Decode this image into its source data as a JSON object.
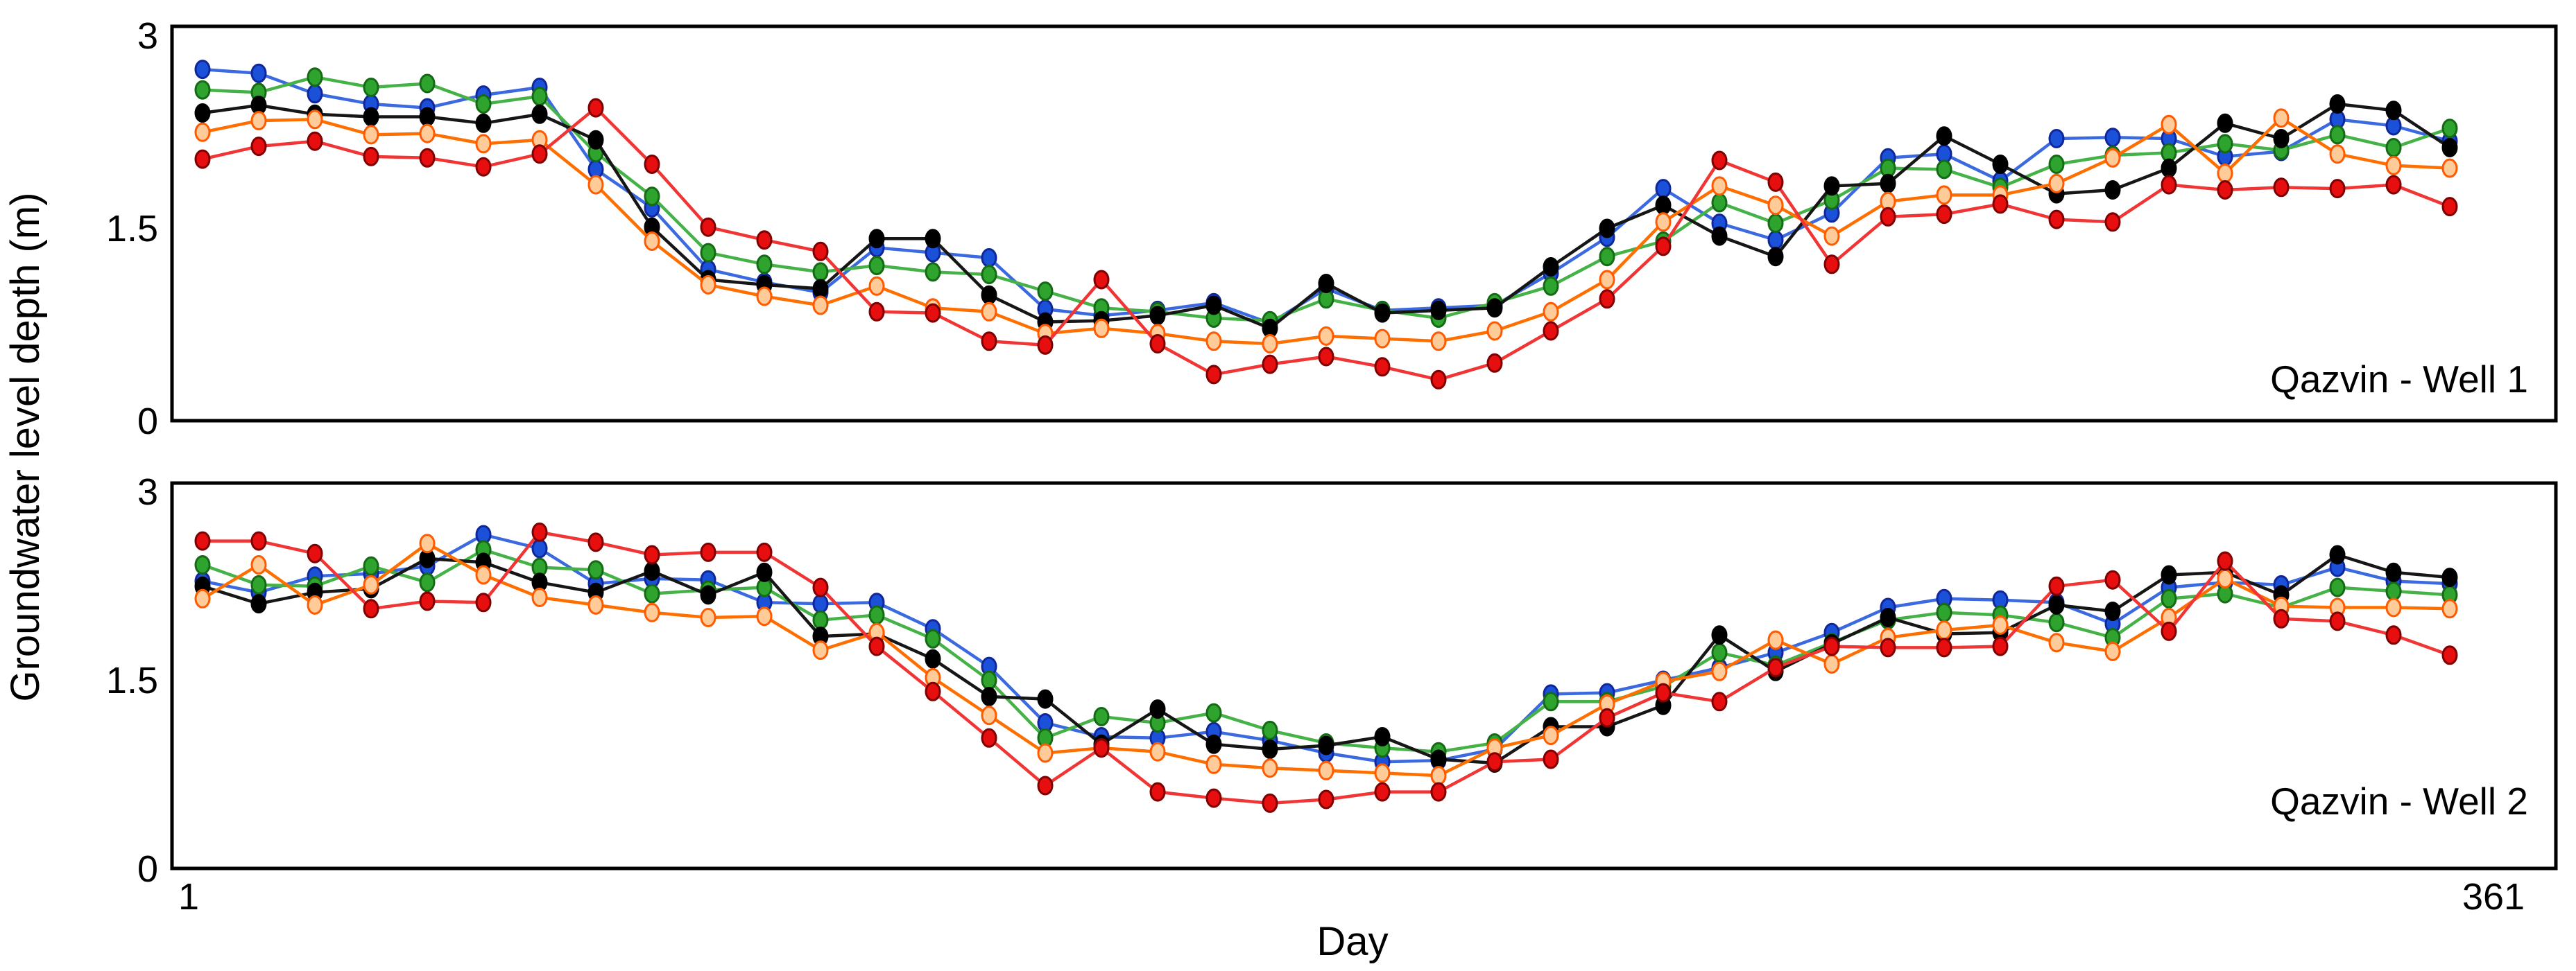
{
  "figure": {
    "ylabel": "Groundwater level depth (m)",
    "xlabel": "Day",
    "yticks": [
      "3",
      "1.5",
      "0"
    ],
    "xtick_first": "1",
    "xtick_last": "361",
    "background": "#ffffff",
    "axis_color": "#000000"
  },
  "chart_data": [
    {
      "type": "line",
      "title": "Qazvin - Well 1",
      "xlabel": "Day",
      "ylabel": "Groundwater level depth (m)",
      "ylim": [
        0,
        3
      ],
      "xlim": [
        1,
        361
      ],
      "x_tick_labels": [
        "1",
        "361"
      ],
      "y_tick_labels": [
        "0",
        "1.5",
        "3"
      ],
      "grid": false,
      "legend": "none",
      "marker": "circle",
      "x": [
        1,
        10,
        19,
        28,
        37,
        46,
        55,
        64,
        73,
        82,
        91,
        100,
        109,
        118,
        127,
        136,
        145,
        154,
        163,
        172,
        181,
        190,
        199,
        208,
        217,
        226,
        235,
        244,
        253,
        262,
        271,
        280,
        289,
        298,
        307,
        316,
        325,
        334,
        343,
        352,
        361
      ],
      "series": [
        {
          "name": "blue",
          "line_color": "#3A69E0",
          "marker_fill": "#1B51D8",
          "marker_edge": "#10279B",
          "values": [
            2.74,
            2.71,
            2.55,
            2.47,
            2.44,
            2.54,
            2.6,
            1.96,
            1.66,
            1.18,
            1.08,
            1.0,
            1.35,
            1.31,
            1.27,
            0.87,
            0.82,
            0.86,
            0.92,
            0.76,
            1.03,
            0.86,
            0.88,
            0.9,
            1.15,
            1.43,
            1.81,
            1.54,
            1.41,
            1.62,
            2.05,
            2.08,
            1.87,
            2.2,
            2.21,
            2.2,
            2.06,
            2.1,
            2.35,
            2.3,
            2.18
          ]
        },
        {
          "name": "green",
          "line_color": "#45B247",
          "marker_fill": "#2EA42E",
          "marker_edge": "#156A15",
          "values": [
            2.58,
            2.56,
            2.68,
            2.6,
            2.63,
            2.47,
            2.53,
            2.09,
            1.75,
            1.31,
            1.22,
            1.16,
            1.21,
            1.16,
            1.14,
            1.01,
            0.88,
            0.85,
            0.8,
            0.78,
            0.95,
            0.86,
            0.8,
            0.92,
            1.05,
            1.28,
            1.4,
            1.7,
            1.54,
            1.72,
            1.97,
            1.96,
            1.82,
            2.0,
            2.07,
            2.09,
            2.16,
            2.11,
            2.23,
            2.13,
            2.28
          ]
        },
        {
          "name": "black",
          "line_color": "#161616",
          "marker_fill": "#000000",
          "marker_edge": "#000000",
          "values": [
            2.4,
            2.46,
            2.39,
            2.37,
            2.37,
            2.32,
            2.39,
            2.19,
            1.51,
            1.1,
            1.06,
            1.03,
            1.42,
            1.42,
            0.98,
            0.77,
            0.78,
            0.82,
            0.9,
            0.72,
            1.07,
            0.84,
            0.86,
            0.88,
            1.2,
            1.5,
            1.68,
            1.44,
            1.28,
            1.83,
            1.85,
            2.22,
            2.0,
            1.77,
            1.8,
            1.97,
            2.32,
            2.2,
            2.47,
            2.42,
            2.13
          ]
        },
        {
          "name": "orange",
          "line_color": "#FF6F00",
          "marker_fill": "#FFCC99",
          "marker_edge": "#FF5A00",
          "values": [
            2.25,
            2.34,
            2.35,
            2.23,
            2.24,
            2.16,
            2.19,
            1.84,
            1.4,
            1.06,
            0.97,
            0.9,
            1.05,
            0.88,
            0.85,
            0.68,
            0.72,
            0.68,
            0.62,
            0.6,
            0.66,
            0.64,
            0.62,
            0.7,
            0.85,
            1.1,
            1.55,
            1.83,
            1.68,
            1.44,
            1.71,
            1.76,
            1.76,
            1.85,
            2.05,
            2.31,
            1.93,
            2.36,
            2.08,
            1.99,
            1.97
          ]
        },
        {
          "name": "red",
          "line_color": "#F13434",
          "marker_fill": "#E60E0E",
          "marker_edge": "#7E0000",
          "values": [
            2.04,
            2.14,
            2.18,
            2.06,
            2.05,
            1.98,
            2.08,
            2.44,
            2.0,
            1.51,
            1.41,
            1.32,
            0.85,
            0.84,
            0.62,
            0.59,
            1.1,
            0.6,
            0.36,
            0.44,
            0.5,
            0.42,
            0.32,
            0.45,
            0.7,
            0.95,
            1.36,
            2.03,
            1.86,
            1.22,
            1.59,
            1.61,
            1.69,
            1.57,
            1.55,
            1.84,
            1.8,
            1.82,
            1.81,
            1.84,
            1.67
          ]
        }
      ]
    },
    {
      "type": "line",
      "title": "Qazvin - Well 2",
      "xlabel": "Day",
      "ylabel": "Groundwater level depth (m)",
      "ylim": [
        0,
        3
      ],
      "xlim": [
        1,
        361
      ],
      "x_tick_labels": [
        "1",
        "361"
      ],
      "y_tick_labels": [
        "0",
        "1.5",
        "3"
      ],
      "grid": false,
      "legend": "none",
      "marker": "circle",
      "x": [
        1,
        10,
        19,
        28,
        37,
        46,
        55,
        64,
        73,
        82,
        91,
        100,
        109,
        118,
        127,
        136,
        145,
        154,
        163,
        172,
        181,
        190,
        199,
        208,
        217,
        226,
        235,
        244,
        253,
        262,
        271,
        280,
        289,
        298,
        307,
        316,
        325,
        334,
        343,
        352,
        361
      ],
      "series": [
        {
          "name": "blue",
          "line_color": "#3A69E0",
          "marker_fill": "#1B51D8",
          "marker_edge": "#10279B",
          "values": [
            2.29,
            2.2,
            2.33,
            2.35,
            2.41,
            2.66,
            2.55,
            2.27,
            2.31,
            2.3,
            2.12,
            2.11,
            2.12,
            1.91,
            1.61,
            1.16,
            1.05,
            1.04,
            1.09,
            1.02,
            0.92,
            0.85,
            0.86,
            0.95,
            1.39,
            1.4,
            1.5,
            1.6,
            1.72,
            1.88,
            2.08,
            2.15,
            2.14,
            2.12,
            1.95,
            2.24,
            2.28,
            2.26,
            2.4,
            2.29,
            2.27
          ]
        },
        {
          "name": "green",
          "line_color": "#45B247",
          "marker_fill": "#2EA42E",
          "marker_edge": "#156A15",
          "values": [
            2.42,
            2.26,
            2.25,
            2.41,
            2.28,
            2.54,
            2.4,
            2.38,
            2.19,
            2.22,
            2.24,
            1.98,
            2.02,
            1.83,
            1.5,
            1.04,
            1.21,
            1.16,
            1.24,
            1.1,
            1.0,
            0.96,
            0.93,
            1.0,
            1.33,
            1.33,
            1.45,
            1.72,
            1.62,
            1.8,
            1.98,
            2.04,
            2.02,
            1.96,
            1.84,
            2.15,
            2.19,
            2.08,
            2.24,
            2.21,
            2.18
          ]
        },
        {
          "name": "black",
          "line_color": "#161616",
          "marker_fill": "#000000",
          "marker_edge": "#000000",
          "values": [
            2.25,
            2.11,
            2.2,
            2.23,
            2.47,
            2.44,
            2.28,
            2.2,
            2.37,
            2.18,
            2.36,
            1.85,
            1.87,
            1.67,
            1.37,
            1.35,
            0.99,
            1.27,
            0.99,
            0.95,
            0.98,
            1.05,
            0.87,
            0.84,
            1.13,
            1.13,
            1.3,
            1.86,
            1.57,
            1.79,
            2.0,
            1.87,
            1.88,
            2.1,
            2.05,
            2.34,
            2.36,
            2.18,
            2.5,
            2.36,
            2.32
          ]
        },
        {
          "name": "orange",
          "line_color": "#FF6F00",
          "marker_fill": "#FFCC99",
          "marker_edge": "#FF5A00",
          "values": [
            2.15,
            2.42,
            2.1,
            2.26,
            2.59,
            2.34,
            2.16,
            2.1,
            2.04,
            2.0,
            2.01,
            1.74,
            1.88,
            1.52,
            1.22,
            0.92,
            0.96,
            0.93,
            0.83,
            0.8,
            0.78,
            0.76,
            0.74,
            0.96,
            1.06,
            1.31,
            1.49,
            1.57,
            1.82,
            1.63,
            1.84,
            1.9,
            1.94,
            1.8,
            1.73,
            2.0,
            2.31,
            2.09,
            2.08,
            2.08,
            2.07
          ]
        },
        {
          "name": "red",
          "line_color": "#F13434",
          "marker_fill": "#E60E0E",
          "marker_edge": "#7E0000",
          "values": [
            2.61,
            2.61,
            2.51,
            2.07,
            2.13,
            2.12,
            2.68,
            2.6,
            2.5,
            2.52,
            2.52,
            2.24,
            1.77,
            1.41,
            1.04,
            0.66,
            0.96,
            0.61,
            0.56,
            0.52,
            0.55,
            0.61,
            0.61,
            0.85,
            0.87,
            1.2,
            1.4,
            1.33,
            1.6,
            1.77,
            1.76,
            1.76,
            1.77,
            2.25,
            2.3,
            1.89,
            2.45,
            1.99,
            1.97,
            1.86,
            1.7
          ]
        }
      ]
    }
  ]
}
